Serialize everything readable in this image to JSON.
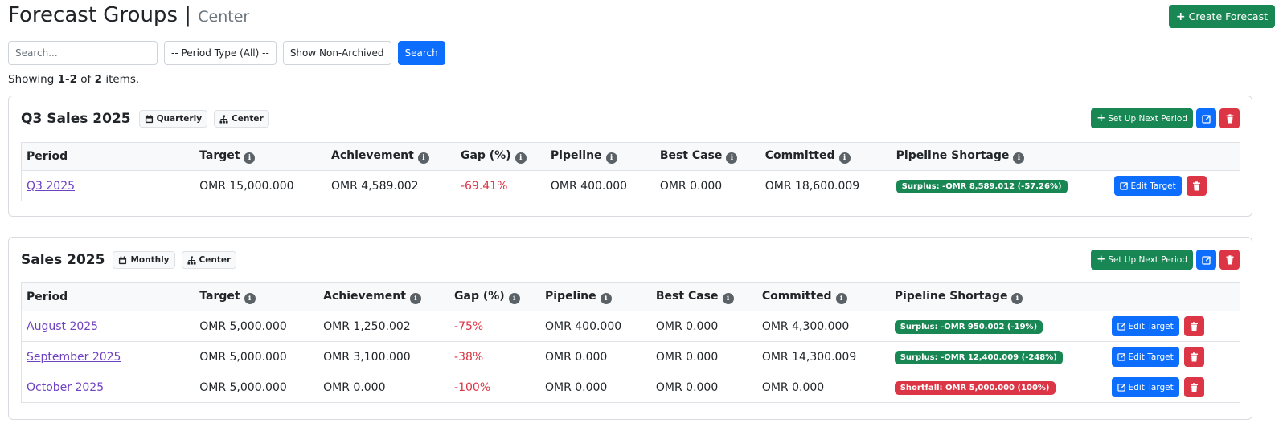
{
  "page": {
    "title": "Forecast Groups |",
    "subtitle": "Center",
    "create_label": "Create Forecast"
  },
  "toolbar": {
    "search_placeholder": "Search...",
    "period_type_select": "-- Period Type (All) --",
    "archive_toggle_label": "Show Non-Archived",
    "search_button_label": "Search"
  },
  "summary": {
    "prefix": "Showing",
    "range": "1-2",
    "middle": "of",
    "total": "2",
    "suffix": "items."
  },
  "columns": [
    "Period",
    "Target",
    "Achievement",
    "Gap (%)",
    "Pipeline",
    "Best Case",
    "Committed",
    "Pipeline Shortage"
  ],
  "groups": [
    {
      "name": "Q3 Sales 2025",
      "period_type": "Quarterly",
      "scope": "Center",
      "setup_label": "Set Up Next Period",
      "rows": [
        {
          "period": "Q3 2025",
          "target": "OMR 15,000.000",
          "achievement": "OMR 4,589.002",
          "gap": "-69.41%",
          "pipeline": "OMR 400.000",
          "best_case": "OMR 0.000",
          "committed": "OMR 18,600.009",
          "shortage": "Surplus: -OMR 8,589.012 (-57.26%)",
          "shortage_status": "surplus",
          "edit_label": "Edit Target"
        }
      ]
    },
    {
      "name": "Sales 2025",
      "period_type": "Monthly",
      "scope": "Center",
      "setup_label": "Set Up Next Period",
      "rows": [
        {
          "period": "August 2025",
          "target": "OMR 5,000.000",
          "achievement": "OMR 1,250.002",
          "gap": "-75%",
          "pipeline": "OMR 400.000",
          "best_case": "OMR 0.000",
          "committed": "OMR 4,300.000",
          "shortage": "Surplus: -OMR 950.002 (-19%)",
          "shortage_status": "surplus",
          "edit_label": "Edit Target"
        },
        {
          "period": "September 2025",
          "target": "OMR 5,000.000",
          "achievement": "OMR 3,100.000",
          "gap": "-38%",
          "pipeline": "OMR 0.000",
          "best_case": "OMR 0.000",
          "committed": "OMR 14,300.009",
          "shortage": "Surplus: -OMR 12,400.009 (-248%)",
          "shortage_status": "surplus",
          "edit_label": "Edit Target"
        },
        {
          "period": "October 2025",
          "target": "OMR 5,000.000",
          "achievement": "OMR 0.000",
          "gap": "-100%",
          "pipeline": "OMR 0.000",
          "best_case": "OMR 0.000",
          "committed": "OMR 0.000",
          "shortage": "Shortfall: OMR 5,000.000 (100%)",
          "shortage_status": "shortfall",
          "edit_label": "Edit Target"
        }
      ]
    }
  ],
  "colors": {
    "primary": "#0d6efd",
    "success": "#198754",
    "danger": "#dc3545",
    "link": "#6f42c1"
  },
  "icons": {
    "create": "plus-icon",
    "badge_type": "calendar-icon",
    "badge_scope": "sitemap-icon",
    "info": "info-circle-icon",
    "edit": "edit-icon",
    "delete": "trash-icon"
  }
}
